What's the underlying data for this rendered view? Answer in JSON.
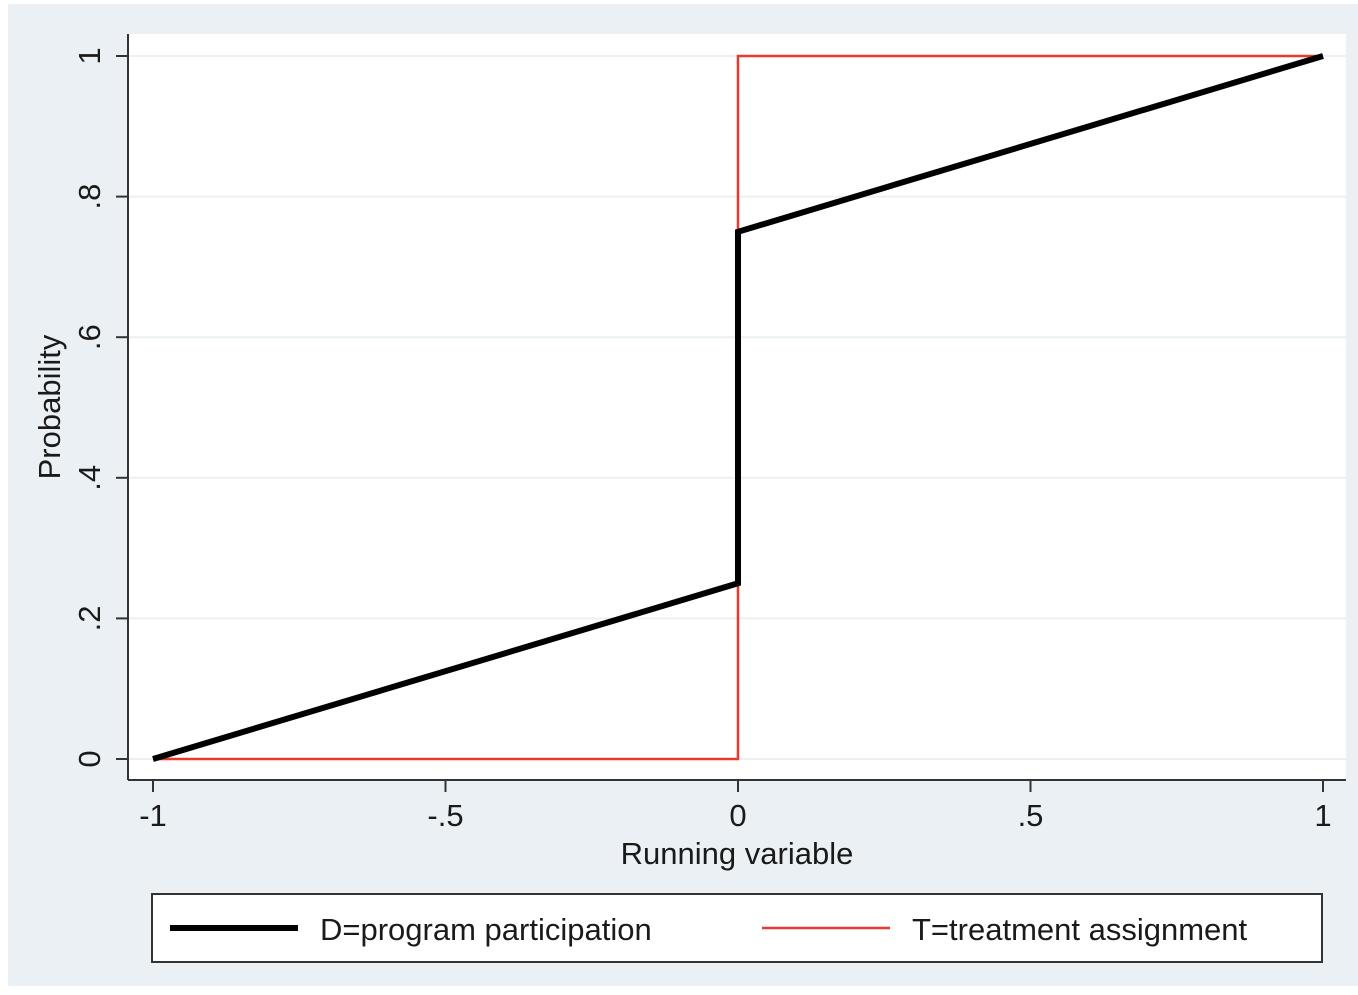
{
  "chart_data": {
    "type": "line",
    "title": "",
    "xlabel": "Running variable",
    "ylabel": "Probability",
    "xlim": [
      -1,
      1
    ],
    "ylim": [
      0,
      1
    ],
    "x_ticks": [
      -1,
      -0.5,
      0,
      0.5,
      1
    ],
    "x_tick_labels": [
      "-1",
      "-.5",
      "0",
      ".5",
      "1"
    ],
    "y_ticks": [
      0,
      0.2,
      0.4,
      0.6,
      0.8,
      1
    ],
    "y_tick_labels": [
      "0",
      ".2",
      ".4",
      ".6",
      ".8",
      "1"
    ],
    "grid": true,
    "legend_position": "bottom",
    "series": [
      {
        "name": "D=program participation",
        "color": "#000000",
        "points": [
          [
            -1,
            0
          ],
          [
            0,
            0.25
          ],
          [
            0,
            0.75
          ],
          [
            1,
            1
          ]
        ]
      },
      {
        "name": "T=treatment assignment",
        "color": "#e8392f",
        "points": [
          [
            -1,
            0
          ],
          [
            0,
            0
          ],
          [
            0,
            1
          ],
          [
            1,
            1
          ]
        ]
      }
    ]
  }
}
